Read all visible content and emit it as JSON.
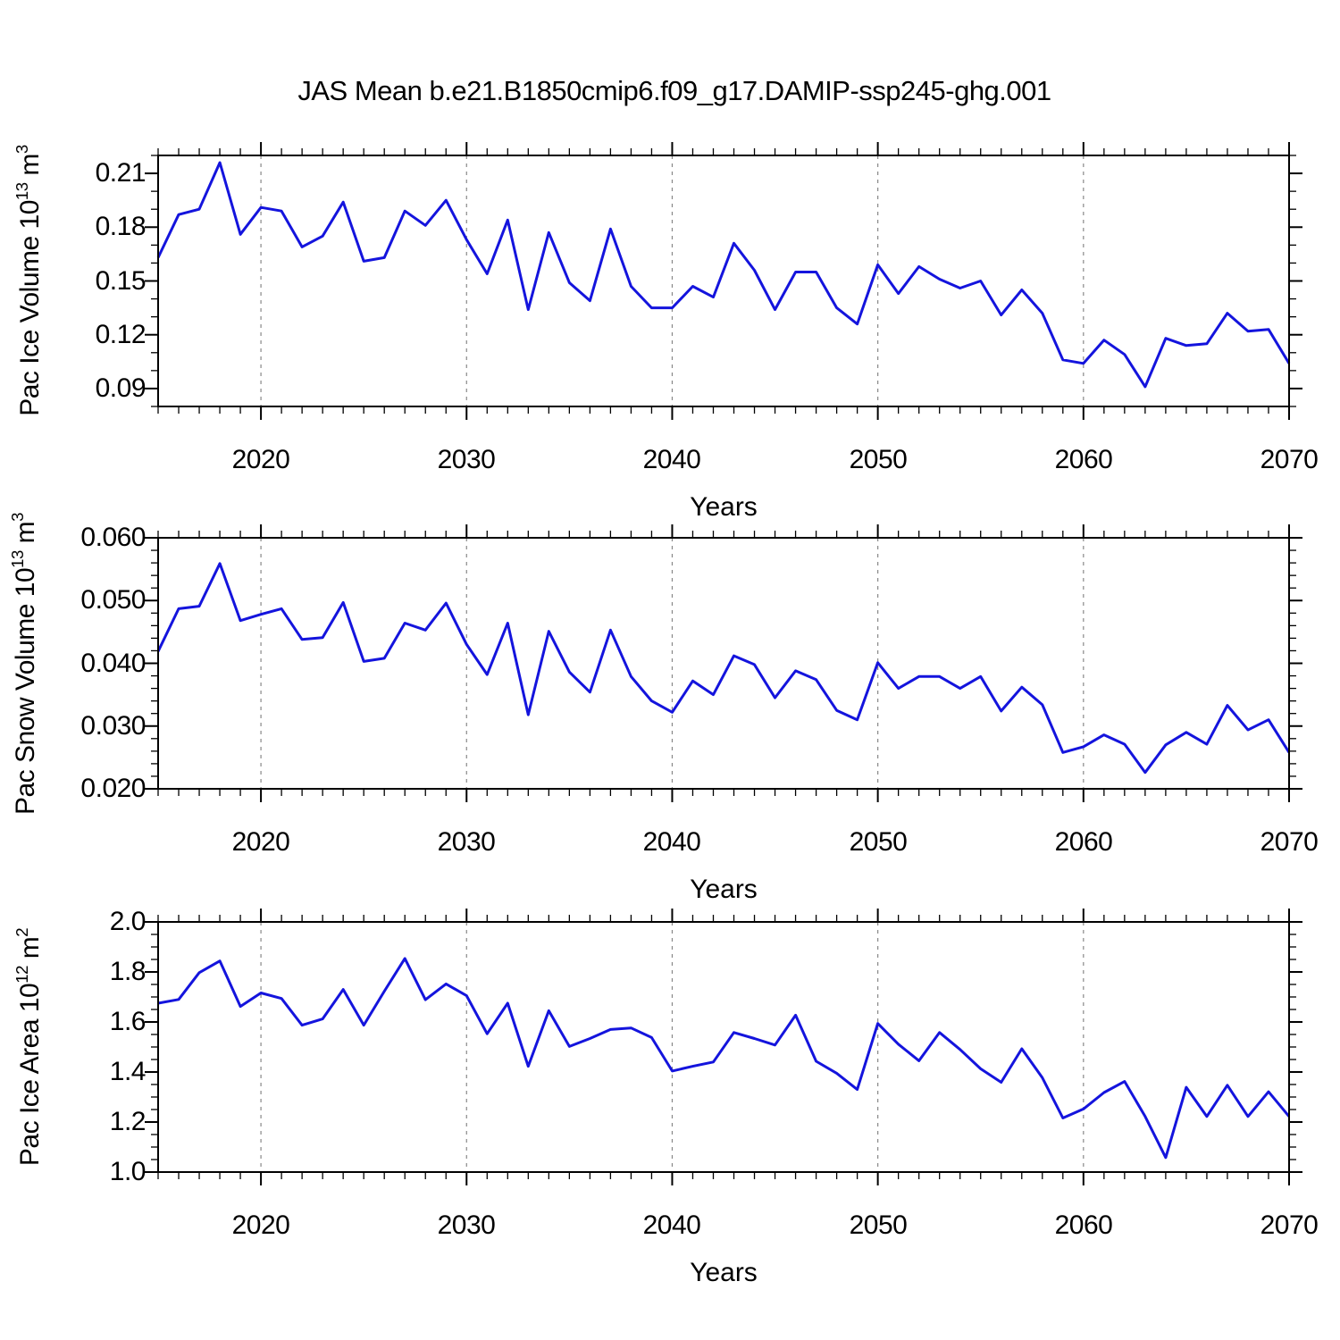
{
  "title": "JAS Mean b.e21.B1850cmip6.f09_g17.DAMIP-ssp245-ghg.001",
  "line_color": "#1414dd",
  "grid_color": "#888888",
  "axis_color": "#000000",
  "x_axis": {
    "label": "Years",
    "xlim": [
      2015,
      2070
    ],
    "tick_labels": [
      "2020",
      "2030",
      "2040",
      "2050",
      "2060",
      "2070"
    ],
    "tick_values": [
      2020,
      2030,
      2040,
      2050,
      2060,
      2070
    ],
    "gridline_years": [
      2020,
      2030,
      2040,
      2050,
      2060
    ],
    "minor_step": 1
  },
  "chart_data": [
    {
      "type": "line",
      "name": "pac-ice-volume",
      "ylabel_prefix": "Pac Ice Volume 10",
      "ylabel_exp": "13",
      "ylabel_unit": " m",
      "ylabel_unit_exp": "3",
      "ylim": [
        0.08,
        0.22
      ],
      "ytick_labels": [
        "0.21",
        "0.18",
        "0.15",
        "0.12",
        "0.09"
      ],
      "ytick_values": [
        0.21,
        0.18,
        0.15,
        0.12,
        0.09
      ],
      "y_minor_step": 0.01,
      "x_start": 2015,
      "x_step": 1,
      "values": [
        0.163,
        0.187,
        0.19,
        0.216,
        0.176,
        0.191,
        0.189,
        0.169,
        0.175,
        0.194,
        0.161,
        0.163,
        0.189,
        0.181,
        0.195,
        0.173,
        0.154,
        0.184,
        0.134,
        0.177,
        0.149,
        0.139,
        0.179,
        0.147,
        0.135,
        0.135,
        0.147,
        0.141,
        0.171,
        0.156,
        0.134,
        0.155,
        0.155,
        0.135,
        0.126,
        0.159,
        0.143,
        0.158,
        0.151,
        0.146,
        0.15,
        0.131,
        0.145,
        0.132,
        0.106,
        0.104,
        0.117,
        0.109,
        0.091,
        0.118,
        0.114,
        0.115,
        0.132,
        0.122,
        0.123,
        0.104
      ]
    },
    {
      "type": "line",
      "name": "pac-snow-volume",
      "ylabel_prefix": "Pac Snow Volume 10",
      "ylabel_exp": "13",
      "ylabel_unit": " m",
      "ylabel_unit_exp": "3",
      "ylim": [
        0.02,
        0.06
      ],
      "ytick_labels": [
        "0.060",
        "0.050",
        "0.040",
        "0.030",
        "0.020"
      ],
      "ytick_values": [
        0.06,
        0.05,
        0.04,
        0.03,
        0.02
      ],
      "y_minor_step": 0.002,
      "x_start": 2015,
      "x_step": 1,
      "values": [
        0.0419,
        0.0487,
        0.0491,
        0.0559,
        0.0468,
        0.0478,
        0.0487,
        0.0438,
        0.0441,
        0.0497,
        0.0403,
        0.0408,
        0.0464,
        0.0453,
        0.0496,
        0.043,
        0.0382,
        0.0464,
        0.0318,
        0.0451,
        0.0386,
        0.0354,
        0.0453,
        0.0379,
        0.034,
        0.0322,
        0.0372,
        0.035,
        0.0412,
        0.0398,
        0.0345,
        0.0388,
        0.0374,
        0.0325,
        0.031,
        0.0401,
        0.036,
        0.0379,
        0.0379,
        0.036,
        0.0379,
        0.0324,
        0.0362,
        0.0334,
        0.0258,
        0.0267,
        0.0286,
        0.0271,
        0.0226,
        0.027,
        0.029,
        0.0271,
        0.0333,
        0.0294,
        0.031,
        0.0258
      ]
    },
    {
      "type": "line",
      "name": "pac-ice-area",
      "ylabel_prefix": "Pac Ice Area 10",
      "ylabel_exp": "12",
      "ylabel_unit": " m",
      "ylabel_unit_exp": "2",
      "ylim": [
        1.0,
        2.0
      ],
      "ytick_labels": [
        "2.0",
        "1.8",
        "1.6",
        "1.4",
        "1.2",
        "1.0"
      ],
      "ytick_values": [
        2.0,
        1.8,
        1.6,
        1.4,
        1.2,
        1.0
      ],
      "y_minor_step": 0.05,
      "x_start": 2015,
      "x_step": 1,
      "values": [
        1.675,
        1.69,
        1.797,
        1.844,
        1.662,
        1.716,
        1.694,
        1.587,
        1.612,
        1.73,
        1.587,
        1.723,
        1.854,
        1.689,
        1.752,
        1.705,
        1.553,
        1.675,
        1.423,
        1.645,
        1.502,
        1.534,
        1.57,
        1.576,
        1.538,
        1.404,
        1.423,
        1.44,
        1.558,
        1.534,
        1.508,
        1.627,
        1.443,
        1.395,
        1.33,
        1.594,
        1.511,
        1.445,
        1.558,
        1.49,
        1.413,
        1.359,
        1.493,
        1.377,
        1.216,
        1.252,
        1.318,
        1.362,
        1.222,
        1.058,
        1.339,
        1.222,
        1.347,
        1.222,
        1.321,
        1.222
      ]
    }
  ]
}
